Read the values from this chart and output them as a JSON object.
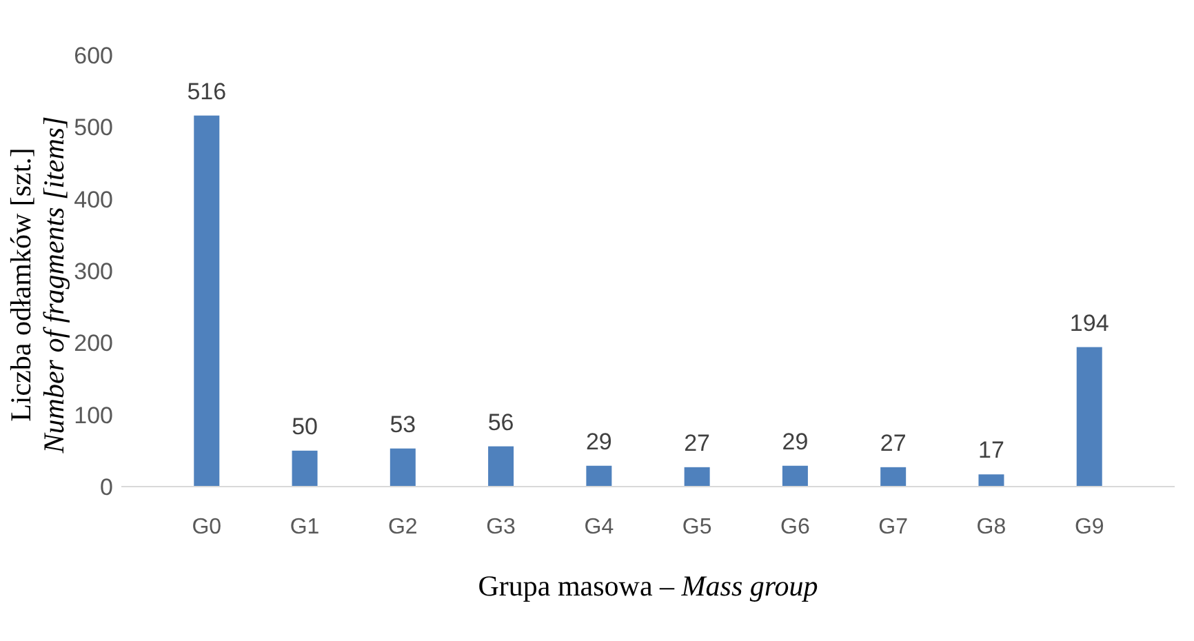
{
  "chart_data": {
    "type": "bar",
    "xlabel": "Grupa masowa – Mass group",
    "ylabel": "Liczba odłamków [szt.]\nNumber of fragments [items]",
    "categories": [
      "G0",
      "G1",
      "G2",
      "G3",
      "G4",
      "G5",
      "G6",
      "G7",
      "G8",
      "G9"
    ],
    "values": [
      516,
      50,
      53,
      56,
      29,
      27,
      29,
      27,
      17,
      194
    ],
    "color": "#4f81bd",
    "ylim": [
      0,
      600
    ],
    "yticks": [
      0,
      100,
      200,
      300,
      400,
      500,
      600
    ],
    "grid": false,
    "data_labels": true
  }
}
